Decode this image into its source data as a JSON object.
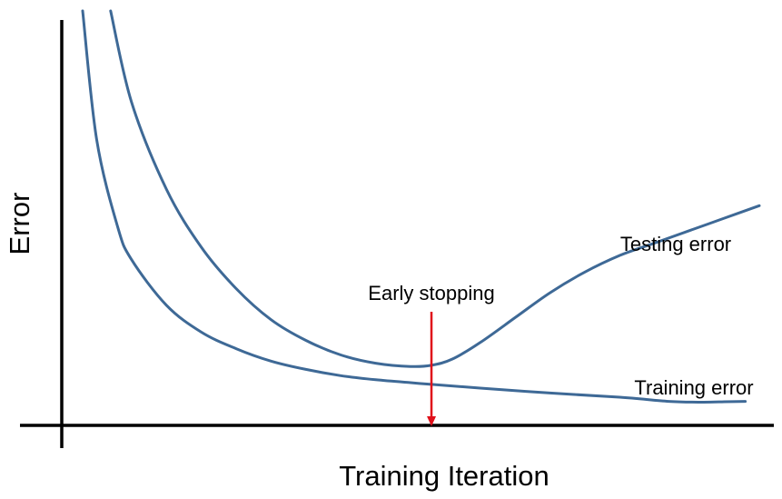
{
  "chart_data": {
    "type": "line",
    "title": "",
    "xlabel": "Training Iteration",
    "ylabel": "Error",
    "xlim": [
      0,
      100
    ],
    "ylim": [
      0,
      100
    ],
    "grid": false,
    "legend": "none",
    "series": [
      {
        "name": "Testing error",
        "color": "#3e6996",
        "x": [
          7,
          10,
          15,
          20,
          25,
          30,
          35,
          40,
          45,
          50,
          53,
          56,
          60,
          65,
          70,
          75,
          80,
          85,
          90,
          95,
          100
        ],
        "y": [
          100,
          78,
          57,
          43,
          33,
          25.5,
          20.5,
          17,
          15,
          14.2,
          14.5,
          16,
          20,
          26,
          32,
          37,
          41,
          44,
          47,
          50,
          53
        ]
      },
      {
        "name": "Training error",
        "color": "#3e6996",
        "x": [
          3,
          5,
          8,
          10,
          15,
          20,
          25,
          30,
          35,
          40,
          45,
          50,
          53,
          60,
          70,
          80,
          87,
          92,
          95,
          98
        ],
        "y": [
          100,
          69,
          48,
          40,
          29,
          22.5,
          18.5,
          15.5,
          13.5,
          12,
          11,
          10.3,
          9.9,
          9,
          7.8,
          6.8,
          5.8,
          5.6,
          5.7,
          5.8
        ]
      }
    ],
    "annotations": [
      {
        "text": "Early stopping",
        "x": 53,
        "color": "#e0101a"
      }
    ]
  }
}
